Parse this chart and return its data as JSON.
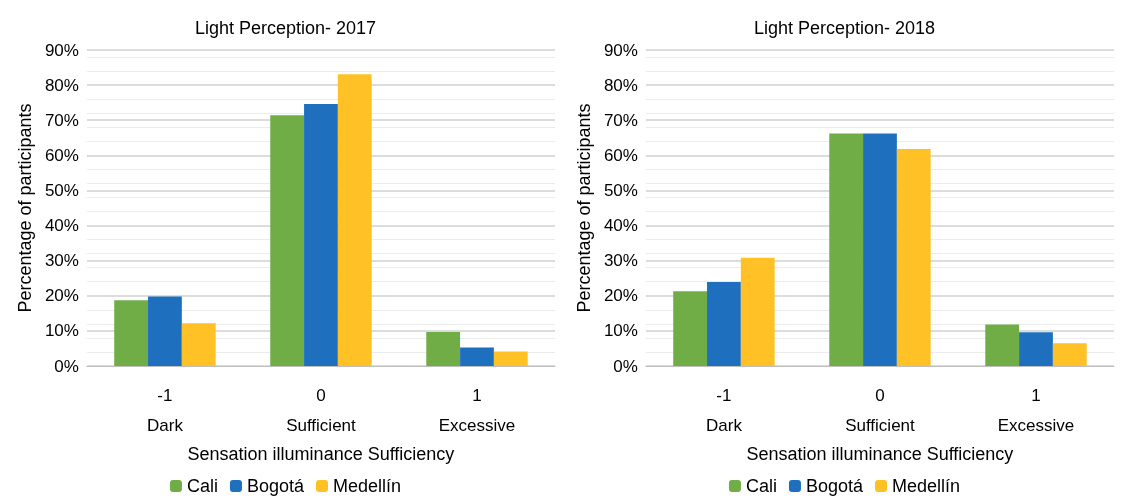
{
  "chart_data": [
    {
      "type": "bar",
      "title": "Light Perception- 2017",
      "xlabel": "Sensation illuminance Sufficiency",
      "ylabel": "Percentage of participants",
      "categories": [
        "-1\nDark",
        "0\nSufficient",
        "1\nExcessive"
      ],
      "series": [
        {
          "name": "Cali",
          "color": "#70ad47",
          "values": [
            18.7,
            71.4,
            9.7
          ]
        },
        {
          "name": "Bogotá",
          "color": "#1f6fbf",
          "values": [
            19.8,
            74.6,
            5.3
          ]
        },
        {
          "name": "Medellín",
          "color": "#ffc125",
          "values": [
            12.2,
            83.1,
            4.1
          ]
        }
      ],
      "ylim": [
        0,
        90
      ],
      "yticks": [
        {
          "value": 0,
          "label": "0%"
        },
        {
          "value": 10,
          "label": "10%"
        },
        {
          "value": 20,
          "label": "20%"
        },
        {
          "value": 30,
          "label": "30%"
        },
        {
          "value": 40,
          "label": "40%"
        },
        {
          "value": 50,
          "label": "50%"
        },
        {
          "value": 60,
          "label": "60%"
        },
        {
          "value": 70,
          "label": "70%"
        },
        {
          "value": 80,
          "label": "80%"
        },
        {
          "value": 90,
          "label": "90%"
        }
      ],
      "grid": "y",
      "legend": "bottom"
    },
    {
      "type": "bar",
      "title": "Light Perception- 2018",
      "xlabel": "Sensation illuminance Sufficiency",
      "ylabel": "Percentage of participants",
      "categories": [
        "-1\nDark",
        "0\nSufficient",
        "1\nExcessive"
      ],
      "series": [
        {
          "name": "Cali",
          "color": "#70ad47",
          "values": [
            21.3,
            66.2,
            11.8
          ]
        },
        {
          "name": "Bogotá",
          "color": "#1f6fbf",
          "values": [
            23.9,
            66.2,
            9.6
          ]
        },
        {
          "name": "Medellín",
          "color": "#ffc125",
          "values": [
            30.8,
            61.8,
            6.5
          ]
        }
      ],
      "ylim": [
        0,
        90
      ],
      "yticks": [
        {
          "value": 0,
          "label": "0%"
        },
        {
          "value": 10,
          "label": "10%"
        },
        {
          "value": 20,
          "label": "20%"
        },
        {
          "value": 30,
          "label": "30%"
        },
        {
          "value": 40,
          "label": "40%"
        },
        {
          "value": 50,
          "label": "50%"
        },
        {
          "value": 60,
          "label": "60%"
        },
        {
          "value": 70,
          "label": "70%"
        },
        {
          "value": 80,
          "label": "80%"
        },
        {
          "value": 90,
          "label": "90%"
        }
      ],
      "grid": "y",
      "legend": "bottom"
    }
  ]
}
